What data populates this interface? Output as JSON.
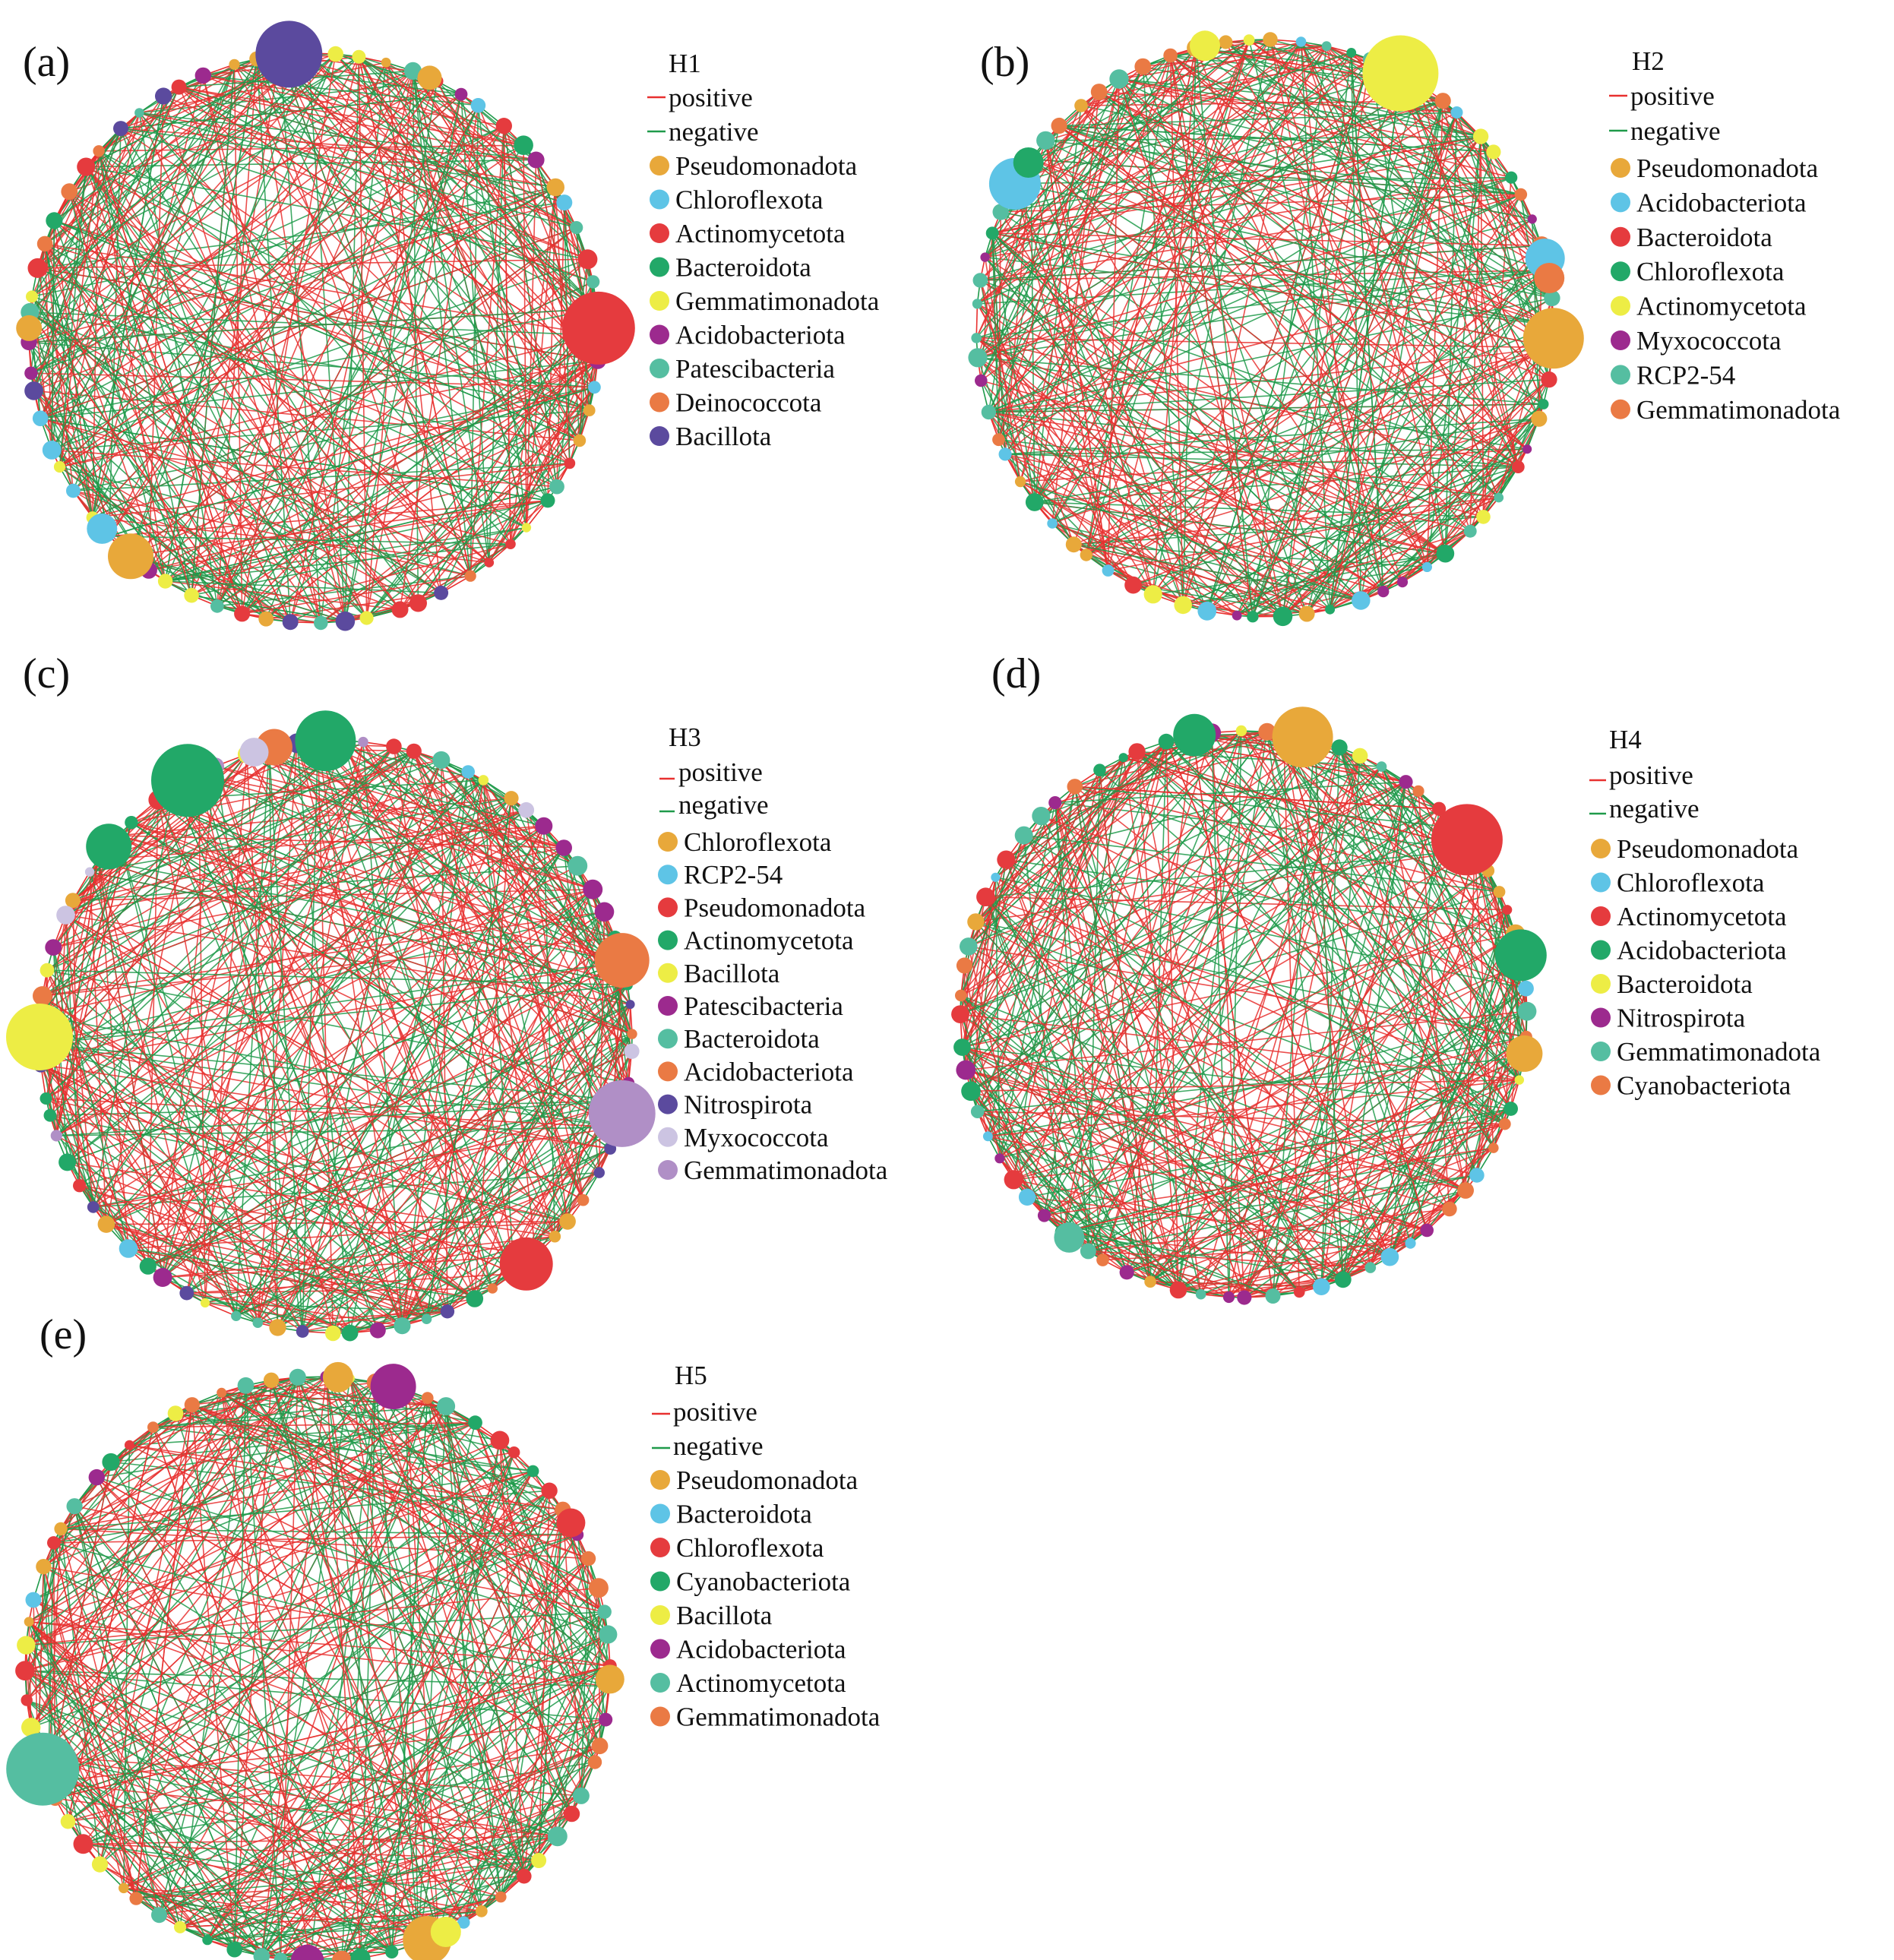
{
  "colors": {
    "positive_edge": "#e8302f",
    "negative_edge": "#1f9a4a",
    "palette": [
      "#e8a83a",
      "#5ec4e6",
      "#e53b3e",
      "#22a868",
      "#eded45",
      "#9c2a8e",
      "#55bea1",
      "#ea7a44",
      "#5b4a9e",
      "#ccc4e2",
      "#b08fc6"
    ]
  },
  "panels": [
    {
      "label": "(a)",
      "title": "H1",
      "edge_labels": {
        "positive": "positive",
        "negative": "negative"
      },
      "taxa": [
        {
          "name": "Pseudomonadota",
          "color": "#e8a83a"
        },
        {
          "name": "Chloroflexota",
          "color": "#5ec4e6"
        },
        {
          "name": "Actinomycetota",
          "color": "#e53b3e"
        },
        {
          "name": "Bacteroidota",
          "color": "#22a868"
        },
        {
          "name": "Gemmatimonadota",
          "color": "#eded45"
        },
        {
          "name": "Acidobacteriota",
          "color": "#9c2a8e"
        },
        {
          "name": "Patescibacteria",
          "color": "#55bea1"
        },
        {
          "name": "Deinococcota",
          "color": "#ea7a44"
        },
        {
          "name": "Bacillota",
          "color": "#5b4a9e"
        }
      ]
    },
    {
      "label": "(b)",
      "title": "H2",
      "edge_labels": {
        "positive": "positive",
        "negative": "negative"
      },
      "taxa": [
        {
          "name": "Pseudomonadota",
          "color": "#e8a83a"
        },
        {
          "name": "Acidobacteriota",
          "color": "#5ec4e6"
        },
        {
          "name": "Bacteroidota",
          "color": "#e53b3e"
        },
        {
          "name": "Chloroflexota",
          "color": "#22a868"
        },
        {
          "name": "Actinomycetota",
          "color": "#eded45"
        },
        {
          "name": "Myxococcota",
          "color": "#9c2a8e"
        },
        {
          "name": "RCP2-54",
          "color": "#55bea1"
        },
        {
          "name": "Gemmatimonadota",
          "color": "#ea7a44"
        }
      ]
    },
    {
      "label": "(c)",
      "title": "H3",
      "edge_labels": {
        "positive": "positive",
        "negative": "negative"
      },
      "taxa": [
        {
          "name": "Chloroflexota",
          "color": "#e8a83a"
        },
        {
          "name": "RCP2-54",
          "color": "#5ec4e6"
        },
        {
          "name": "Pseudomonadota",
          "color": "#e53b3e"
        },
        {
          "name": "Actinomycetota",
          "color": "#22a868"
        },
        {
          "name": "Bacillota",
          "color": "#eded45"
        },
        {
          "name": "Patescibacteria",
          "color": "#9c2a8e"
        },
        {
          "name": "Bacteroidota",
          "color": "#55bea1"
        },
        {
          "name": "Acidobacteriota",
          "color": "#ea7a44"
        },
        {
          "name": "Nitrospirota",
          "color": "#5b4a9e"
        },
        {
          "name": "Myxococcota",
          "color": "#ccc4e2"
        },
        {
          "name": "Gemmatimonadota",
          "color": "#b08fc6"
        }
      ]
    },
    {
      "label": "(d)",
      "title": "H4",
      "edge_labels": {
        "positive": "positive",
        "negative": "negative"
      },
      "taxa": [
        {
          "name": "Pseudomonadota",
          "color": "#e8a83a"
        },
        {
          "name": "Chloroflexota",
          "color": "#5ec4e6"
        },
        {
          "name": "Actinomycetota",
          "color": "#e53b3e"
        },
        {
          "name": "Acidobacteriota",
          "color": "#22a868"
        },
        {
          "name": "Bacteroidota",
          "color": "#eded45"
        },
        {
          "name": "Nitrospirota",
          "color": "#9c2a8e"
        },
        {
          "name": "Gemmatimonadota",
          "color": "#55bea1"
        },
        {
          "name": "Cyanobacteriota",
          "color": "#ea7a44"
        }
      ]
    },
    {
      "label": "(e)",
      "title": "H5",
      "edge_labels": {
        "positive": "positive",
        "negative": "negative"
      },
      "taxa": [
        {
          "name": "Pseudomonadota",
          "color": "#e8a83a"
        },
        {
          "name": "Bacteroidota",
          "color": "#5ec4e6"
        },
        {
          "name": "Chloroflexota",
          "color": "#e53b3e"
        },
        {
          "name": "Cyanobacteriota",
          "color": "#22a868"
        },
        {
          "name": "Bacillota",
          "color": "#eded45"
        },
        {
          "name": "Acidobacteriota",
          "color": "#9c2a8e"
        },
        {
          "name": "Actinomycetota",
          "color": "#55bea1"
        },
        {
          "name": "Gemmatimonadota",
          "color": "#ea7a44"
        }
      ]
    }
  ]
}
